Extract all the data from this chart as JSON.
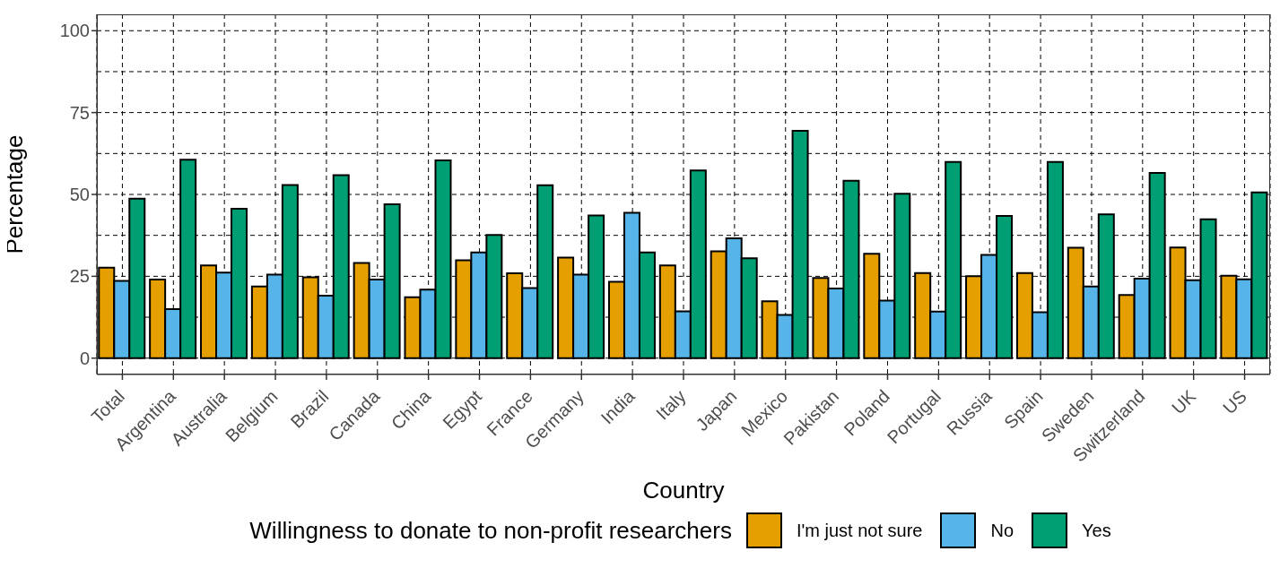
{
  "chart_data": {
    "type": "bar",
    "xlabel": "Country",
    "ylabel": "Percentage",
    "legend_title": "Willingness to donate to non-profit researchers",
    "categories": [
      "Total",
      "Argentina",
      "Australia",
      "Belgium",
      "Brazil",
      "Canada",
      "China",
      "Egypt",
      "France",
      "Germany",
      "India",
      "Italy",
      "Japan",
      "Mexico",
      "Pakistan",
      "Poland",
      "Portugal",
      "Russia",
      "Spain",
      "Sweden",
      "Switzerland",
      "UK",
      "US"
    ],
    "series": [
      {
        "name": "I'm just not sure",
        "color": "#e69f00",
        "values": [
          27.6,
          24.0,
          28.3,
          21.9,
          24.7,
          29.1,
          18.6,
          29.9,
          25.9,
          30.7,
          23.3,
          28.3,
          32.6,
          17.4,
          24.5,
          31.9,
          26.0,
          25.0,
          26.0,
          33.7,
          19.3,
          33.8,
          25.2
        ]
      },
      {
        "name": "No",
        "color": "#56b4e9",
        "values": [
          23.6,
          15.0,
          26.1,
          25.5,
          19.1,
          24.0,
          20.9,
          32.3,
          21.4,
          25.5,
          44.4,
          14.3,
          36.6,
          13.2,
          21.3,
          17.6,
          14.2,
          31.5,
          14.0,
          21.9,
          24.3,
          23.8,
          24.1
        ]
      },
      {
        "name": "Yes",
        "color": "#009e73",
        "values": [
          48.7,
          60.6,
          45.6,
          52.9,
          55.9,
          47.0,
          60.4,
          37.6,
          52.8,
          43.6,
          32.3,
          57.3,
          30.5,
          69.4,
          54.2,
          50.2,
          59.9,
          43.4,
          59.9,
          43.9,
          56.6,
          42.4,
          50.6
        ]
      }
    ],
    "ylim": [
      -5,
      105
    ],
    "yticks": [
      0,
      25,
      50,
      75,
      100
    ],
    "grid": true,
    "legend": "bottom"
  }
}
